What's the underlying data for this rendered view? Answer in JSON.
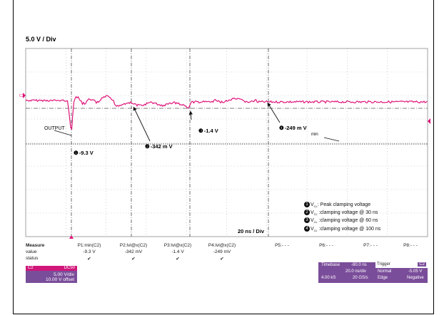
{
  "scale": "5.0 V / Div",
  "time_div": "20 ns / Div",
  "trace_labels": {
    "output": "OUTPUT",
    "min": "min"
  },
  "annotations": [
    {
      "num": "❶",
      "text": "-9.3  V"
    },
    {
      "num": "❷",
      "text": "-342 m V"
    },
    {
      "num": "❸",
      "text": "-1.4 V"
    },
    {
      "num": "❹",
      "text": "-249 m V"
    }
  ],
  "legend": [
    {
      "num": "1",
      "prefix": "V",
      "sub": "CL",
      "text": ": Peak clamping voltage"
    },
    {
      "num": "2",
      "prefix": "V",
      "sub": "CL",
      "text": " :clamping voltage @ 30 ns"
    },
    {
      "num": "3",
      "prefix": "V",
      "sub": "CL",
      "text": " :clamping voltage @ 60 ns"
    },
    {
      "num": "4",
      "prefix": "V",
      "sub": "CL",
      "text": " :clamping voltage @ 100 ns"
    }
  ],
  "measure": {
    "title": "Measure",
    "row_value": "value",
    "row_status": "status",
    "params": [
      {
        "name": "P1:min(C2)",
        "value": "-9.3 V",
        "status": "✔"
      },
      {
        "name": "P2:lvl@x(C2)",
        "value": "-342 mV",
        "status": "✔"
      },
      {
        "name": "P3:lvl@x(C2)",
        "value": "-1.4 V",
        "status": "✔"
      },
      {
        "name": "P4:lvl@x(C2)",
        "value": "-249 mV",
        "status": "✔"
      },
      {
        "name": "P5:- - -",
        "value": "",
        "status": ""
      },
      {
        "name": "P6:- - -",
        "value": "",
        "status": ""
      },
      {
        "name": "P7:- - -",
        "value": "",
        "status": ""
      },
      {
        "name": "P8:- - -",
        "value": "",
        "status": ""
      }
    ]
  },
  "channel": {
    "name": "C2",
    "tag": "DC50",
    "vdiv": "5.00 V/div",
    "offset": "10.00 V offset"
  },
  "timebase": {
    "label": "Timebase",
    "delay": "-80.0 ns",
    "tdiv": "20.0 ns/div",
    "samples": "4.00 kS",
    "rate": "20 GS/s"
  },
  "trigger": {
    "label": "Trigger",
    "tag": "C2",
    "mode": "Normal",
    "level": "-5.05 V",
    "type": "Edge",
    "slope": "Negative"
  },
  "colors": {
    "trace": "#e0147a",
    "grid": "#9a9a9a",
    "panel": "#7a4d9a"
  }
}
